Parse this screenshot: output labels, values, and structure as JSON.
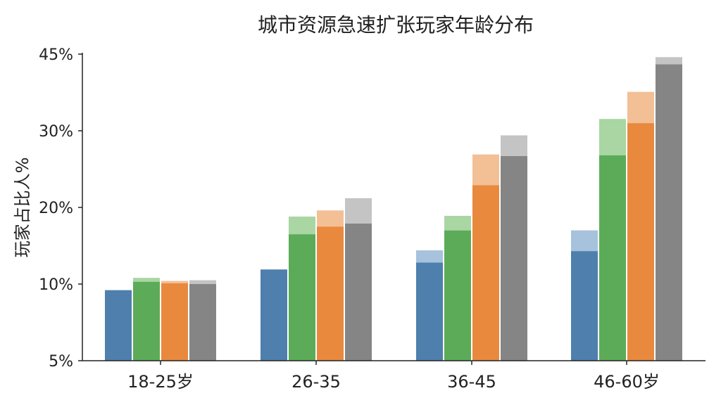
{
  "chart_data": {
    "type": "bar",
    "title": "城市资源急速扩张玩家年龄分布",
    "xlabel": "",
    "ylabel": "玩家占比人%",
    "categories": [
      "18-25岁",
      "26-35",
      "36-45",
      "46-60岁"
    ],
    "yticks": [
      5,
      10,
      20,
      30,
      45
    ],
    "ytick_labels": [
      "5%",
      "10%",
      "20%",
      "30%",
      "45%"
    ],
    "ylim": [
      5,
      45
    ],
    "grid": false,
    "legend": "none",
    "series": [
      {
        "color": "#4e7fad",
        "light": "#a7c2dc",
        "base": [
          9.6,
          11.9,
          12.8,
          14.3
        ],
        "top": [
          9.6,
          11.9,
          14.4,
          17.0
        ]
      },
      {
        "color": "#5cab58",
        "light": "#a9d6a3",
        "base": [
          10.3,
          16.5,
          17.0,
          26.8
        ],
        "top": [
          10.8,
          18.8,
          18.9,
          32.3
        ]
      },
      {
        "color": "#e8893e",
        "light": "#f3bf95",
        "base": [
          10.1,
          17.5,
          22.9,
          31.5
        ],
        "top": [
          10.4,
          19.6,
          26.9,
          37.6
        ]
      },
      {
        "color": "#858585",
        "light": "#c4c4c4",
        "base": [
          10.0,
          17.9,
          26.7,
          43.0
        ],
        "top": [
          10.5,
          21.2,
          29.4,
          44.4
        ]
      }
    ]
  }
}
